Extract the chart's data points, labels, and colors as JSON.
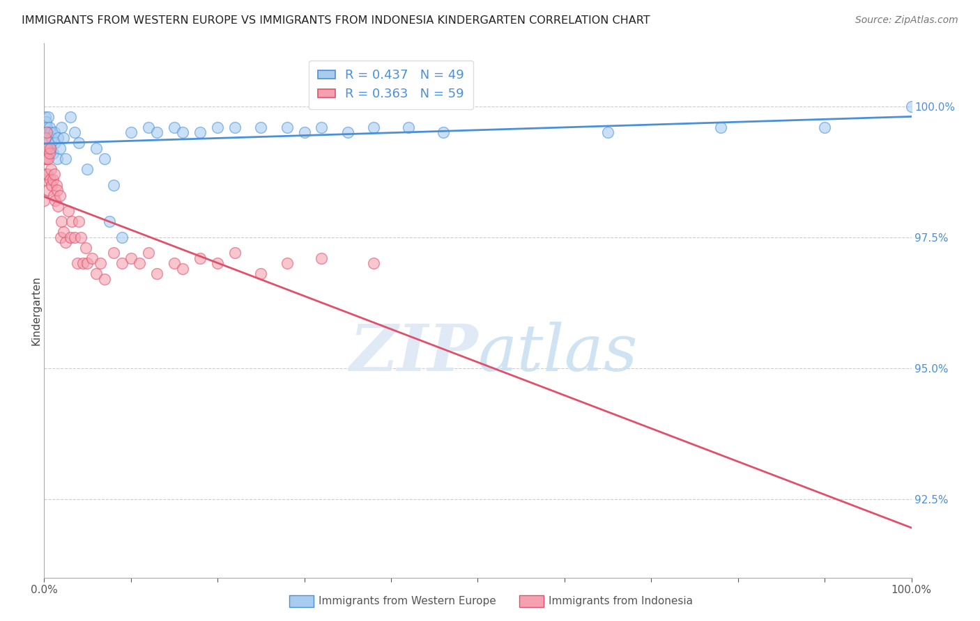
{
  "title": "IMMIGRANTS FROM WESTERN EUROPE VS IMMIGRANTS FROM INDONESIA KINDERGARTEN CORRELATION CHART",
  "source": "Source: ZipAtlas.com",
  "ylabel": "Kindergarten",
  "yticks": [
    92.5,
    95.0,
    97.5,
    100.0
  ],
  "ytick_labels": [
    "92.5%",
    "95.0%",
    "97.5%",
    "100.0%"
  ],
  "xlim": [
    0,
    1
  ],
  "ylim": [
    91.0,
    101.2
  ],
  "blue_R": 0.437,
  "blue_N": 49,
  "pink_R": 0.363,
  "pink_N": 59,
  "blue_color": "#a8ccf0",
  "pink_color": "#f4a0b0",
  "trendline_blue": "#4a90d9",
  "trendline_pink": "#e0506a",
  "legend_label_blue": "Immigrants from Western Europe",
  "legend_label_pink": "Immigrants from Indonesia",
  "blue_x": [
    0.001,
    0.002,
    0.003,
    0.003,
    0.004,
    0.005,
    0.005,
    0.006,
    0.007,
    0.008,
    0.009,
    0.01,
    0.012,
    0.013,
    0.015,
    0.016,
    0.018,
    0.02,
    0.022,
    0.025,
    0.03,
    0.035,
    0.04,
    0.05,
    0.06,
    0.07,
    0.075,
    0.08,
    0.09,
    0.1,
    0.12,
    0.13,
    0.15,
    0.16,
    0.18,
    0.2,
    0.22,
    0.25,
    0.28,
    0.3,
    0.32,
    0.35,
    0.38,
    0.42,
    0.46,
    0.65,
    0.78,
    0.9,
    1.0
  ],
  "blue_y": [
    99.8,
    99.7,
    99.5,
    99.6,
    99.4,
    99.8,
    99.3,
    99.6,
    99.5,
    99.2,
    99.4,
    99.1,
    99.5,
    99.3,
    99.0,
    99.4,
    99.2,
    99.6,
    99.4,
    99.0,
    99.8,
    99.5,
    99.3,
    98.8,
    99.2,
    99.0,
    97.8,
    98.5,
    97.5,
    99.5,
    99.6,
    99.5,
    99.6,
    99.5,
    99.5,
    99.6,
    99.6,
    99.6,
    99.6,
    99.5,
    99.6,
    99.5,
    99.6,
    99.6,
    99.5,
    99.5,
    99.6,
    99.6,
    100.0
  ],
  "pink_x": [
    0.0,
    0.0,
    0.001,
    0.001,
    0.001,
    0.002,
    0.002,
    0.003,
    0.003,
    0.004,
    0.004,
    0.005,
    0.005,
    0.006,
    0.007,
    0.007,
    0.008,
    0.009,
    0.01,
    0.011,
    0.012,
    0.013,
    0.014,
    0.015,
    0.016,
    0.018,
    0.019,
    0.02,
    0.022,
    0.025,
    0.028,
    0.03,
    0.032,
    0.035,
    0.038,
    0.04,
    0.042,
    0.045,
    0.048,
    0.05,
    0.055,
    0.06,
    0.065,
    0.07,
    0.08,
    0.09,
    0.1,
    0.11,
    0.12,
    0.13,
    0.15,
    0.16,
    0.18,
    0.2,
    0.22,
    0.25,
    0.28,
    0.32,
    0.38
  ],
  "pink_y": [
    99.0,
    98.2,
    99.4,
    99.0,
    98.6,
    99.2,
    98.7,
    99.5,
    99.0,
    99.2,
    98.7,
    99.0,
    98.4,
    99.1,
    98.6,
    99.2,
    98.8,
    98.5,
    98.6,
    98.3,
    98.7,
    98.2,
    98.5,
    98.4,
    98.1,
    98.3,
    97.5,
    97.8,
    97.6,
    97.4,
    98.0,
    97.5,
    97.8,
    97.5,
    97.0,
    97.8,
    97.5,
    97.0,
    97.3,
    97.0,
    97.1,
    96.8,
    97.0,
    96.7,
    97.2,
    97.0,
    97.1,
    97.0,
    97.2,
    96.8,
    97.0,
    96.9,
    97.1,
    97.0,
    97.2,
    96.8,
    97.0,
    97.1,
    97.0
  ]
}
